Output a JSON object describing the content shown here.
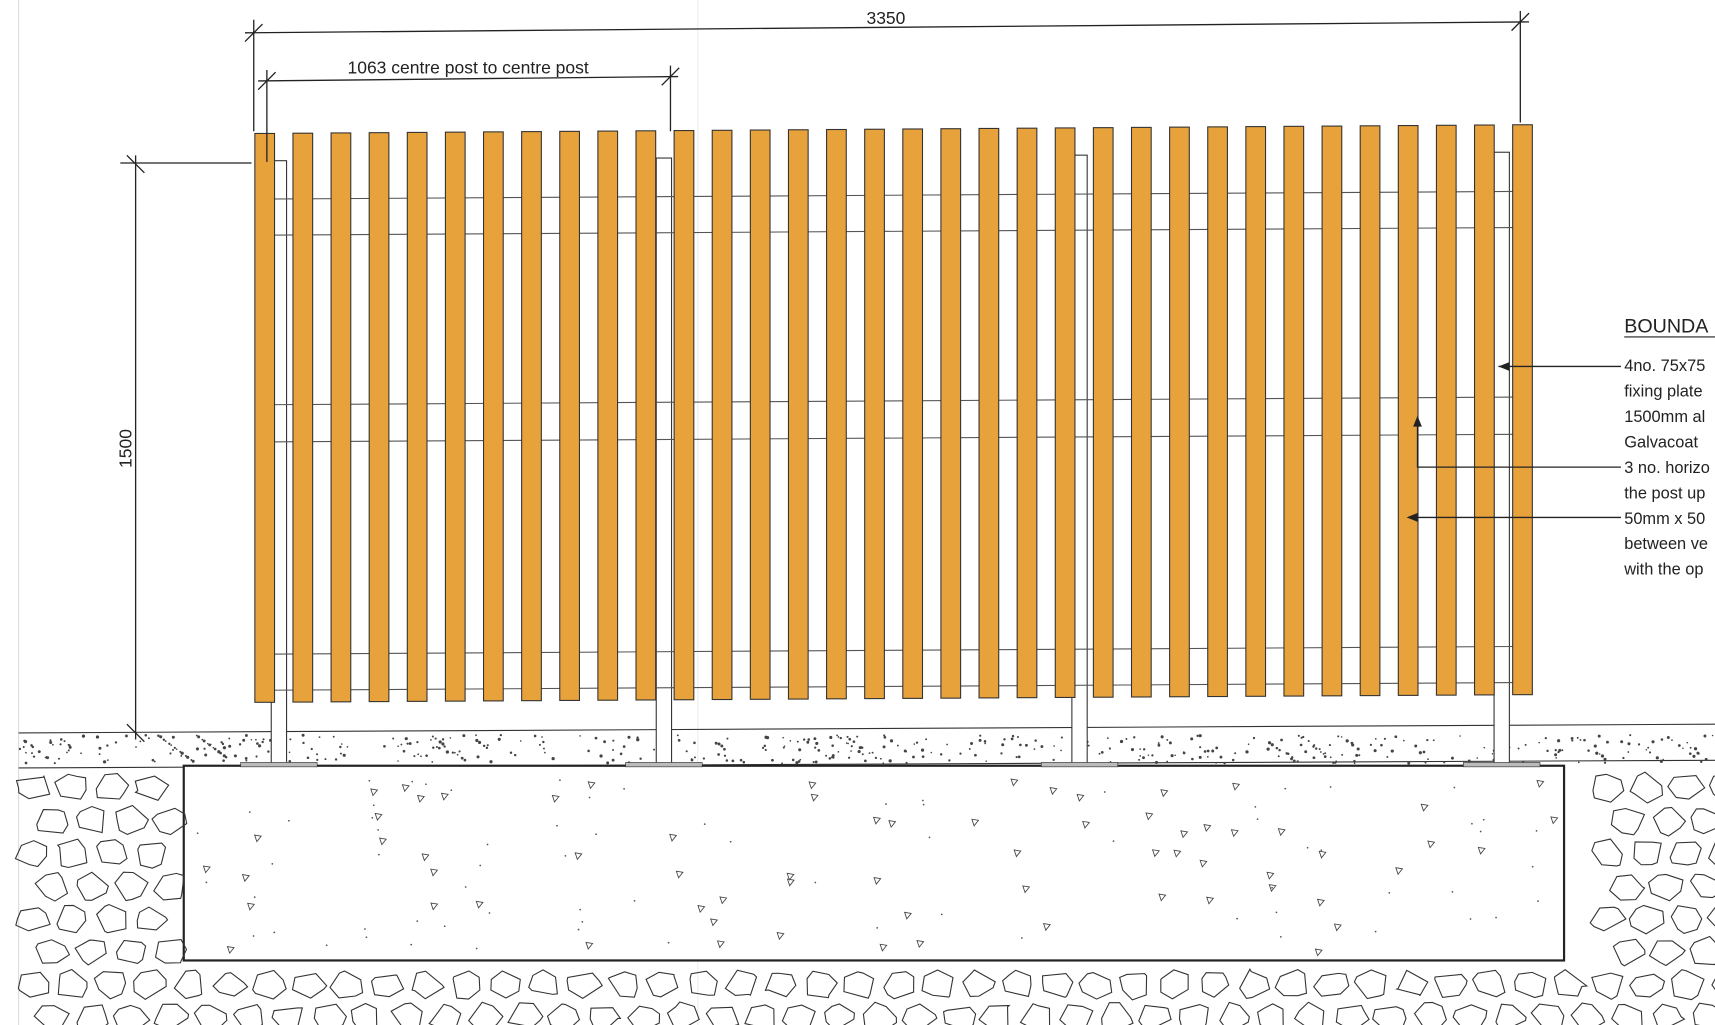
{
  "dimensions": {
    "overall_width": "3350",
    "post_spacing": "1063 centre post to centre post",
    "height": "1500"
  },
  "notes": {
    "heading": "BOUNDA",
    "lines": [
      "4no. 75x75",
      "fixing plate",
      "1500mm al",
      "Galvacoat",
      "3 no. horizo",
      "the post up",
      "50mm x 50",
      "between ve",
      "with the op"
    ]
  }
}
